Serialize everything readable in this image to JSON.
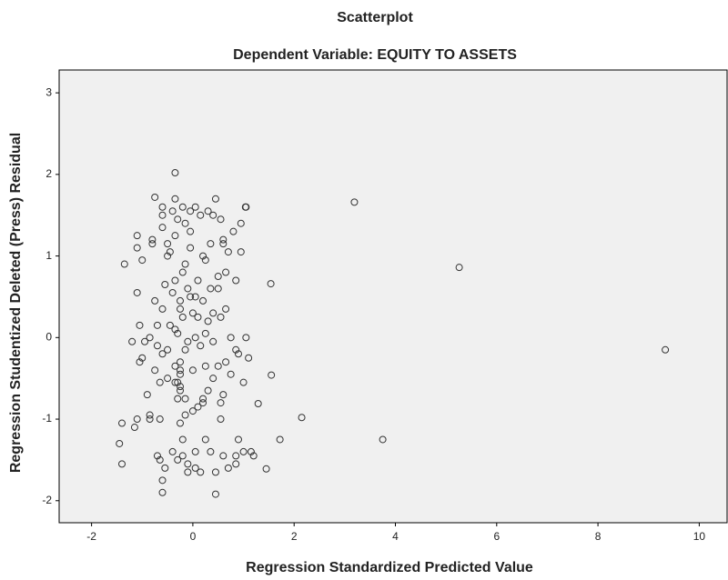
{
  "chart_data": {
    "type": "scatter",
    "title": "Scatterplot",
    "subtitle": "Dependent Variable: EQUITY TO ASSETS",
    "x_label": "Regression Standardized Predicted Value",
    "y_label": "Regression Studentized Deleted (Press) Residual",
    "xlim": [
      -2.64,
      10.55
    ],
    "ylim": [
      -2.27,
      3.28
    ],
    "xticks": [
      -2,
      0,
      2,
      4,
      6,
      8,
      10
    ],
    "yticks": [
      -2,
      -1,
      0,
      1,
      2,
      3
    ],
    "grid": false,
    "color": "#333333",
    "x": [
      -1.4,
      -1.45,
      -1.4,
      -1.35,
      -1.2,
      -1.15,
      -1.1,
      -1.1,
      -1.1,
      -1.1,
      -1.05,
      -1.05,
      -1.0,
      -1.0,
      -0.95,
      -0.9,
      -0.85,
      -0.85,
      -0.85,
      -0.8,
      -0.8,
      -0.75,
      -0.75,
      -0.75,
      -0.7,
      -0.7,
      -0.65,
      -0.7,
      -0.65,
      -0.65,
      -0.6,
      -0.6,
      -0.6,
      -0.6,
      -0.6,
      -0.6,
      -0.6,
      -0.55,
      -0.55,
      -0.5,
      -0.5,
      -0.5,
      -0.5,
      -0.45,
      -0.45,
      -0.4,
      -0.4,
      -0.4,
      -0.35,
      -0.35,
      -0.35,
      -0.35,
      -0.35,
      -0.35,
      -0.35,
      -0.3,
      -0.3,
      -0.3,
      -0.3,
      -0.3,
      -0.25,
      -0.25,
      -0.25,
      -0.25,
      -0.25,
      -0.25,
      -0.25,
      -0.25,
      -0.2,
      -0.2,
      -0.2,
      -0.2,
      -0.2,
      -0.15,
      -0.15,
      -0.15,
      -0.15,
      -0.15,
      -0.1,
      -0.1,
      -0.1,
      -0.1,
      -0.05,
      -0.05,
      -0.05,
      -0.05,
      0.0,
      0.0,
      0.0,
      0.05,
      0.05,
      0.05,
      0.05,
      0.05,
      0.1,
      0.1,
      0.1,
      0.15,
      0.15,
      0.15,
      0.2,
      0.2,
      0.2,
      0.2,
      0.25,
      0.25,
      0.25,
      0.25,
      0.3,
      0.3,
      0.3,
      0.35,
      0.35,
      0.35,
      0.4,
      0.4,
      0.4,
      0.4,
      0.45,
      0.45,
      0.45,
      0.5,
      0.5,
      0.5,
      0.55,
      0.55,
      0.55,
      0.55,
      0.6,
      0.6,
      0.6,
      0.6,
      0.65,
      0.65,
      0.65,
      0.7,
      0.7,
      0.75,
      0.75,
      0.8,
      0.85,
      0.85,
      0.85,
      0.85,
      0.9,
      0.9,
      0.95,
      0.95,
      1.0,
      1.0,
      1.05,
      1.05,
      1.1,
      1.15,
      1.2,
      3.19,
      5.26,
      9.33,
      3.75,
      2.15,
      1.72,
      1.54,
      1.55,
      1.29,
      1.45,
      1.04
    ],
    "y": [
      -1.05,
      -1.3,
      -1.55,
      0.9,
      -0.05,
      -1.1,
      -1.0,
      0.55,
      1.25,
      1.1,
      0.15,
      -0.3,
      -0.25,
      0.95,
      -0.05,
      -0.7,
      -0.95,
      -1.0,
      0.0,
      1.15,
      1.2,
      -0.4,
      1.72,
      0.45,
      0.15,
      -0.1,
      -1.0,
      -1.45,
      -1.5,
      -0.55,
      1.6,
      1.5,
      1.35,
      0.35,
      -0.2,
      -1.75,
      -1.9,
      -1.6,
      0.65,
      -0.5,
      -0.15,
      1.0,
      1.15,
      1.05,
      0.15,
      -1.4,
      0.55,
      1.55,
      1.25,
      2.02,
      1.7,
      0.7,
      0.1,
      -0.35,
      -0.55,
      -0.55,
      -1.5,
      1.45,
      0.05,
      -0.75,
      -0.4,
      -0.3,
      -0.45,
      -0.65,
      -0.6,
      -1.05,
      0.35,
      0.45,
      -1.25,
      -1.45,
      1.6,
      0.8,
      0.25,
      -0.75,
      -0.95,
      1.4,
      0.9,
      -0.15,
      -1.55,
      -1.65,
      -0.05,
      0.6,
      1.55,
      1.3,
      1.1,
      0.5,
      0.3,
      -0.4,
      -0.9,
      -1.4,
      -1.6,
      1.6,
      0.5,
      0.0,
      -0.85,
      0.7,
      0.25,
      -0.1,
      1.5,
      -1.65,
      -0.75,
      -0.8,
      0.45,
      1.0,
      0.05,
      -1.25,
      0.95,
      -0.35,
      1.55,
      -0.65,
      0.2,
      0.6,
      1.15,
      -1.4,
      1.5,
      -0.5,
      -0.05,
      0.3,
      1.7,
      -1.65,
      -1.92,
      0.75,
      -0.35,
      0.6,
      1.45,
      -1.0,
      0.25,
      -0.8,
      1.15,
      1.2,
      -1.45,
      -0.7,
      0.8,
      0.35,
      -0.3,
      1.05,
      -1.6,
      0.0,
      -0.45,
      1.3,
      -1.45,
      -1.55,
      0.7,
      -0.15,
      -0.2,
      -1.25,
      1.05,
      1.4,
      -1.4,
      -0.55,
      0.0,
      1.6,
      -0.25,
      -1.4,
      -1.45,
      1.66,
      0.86,
      -0.15,
      -1.25,
      -0.98,
      -1.25,
      0.66,
      -0.46,
      -0.81,
      -1.61,
      1.6
    ]
  }
}
